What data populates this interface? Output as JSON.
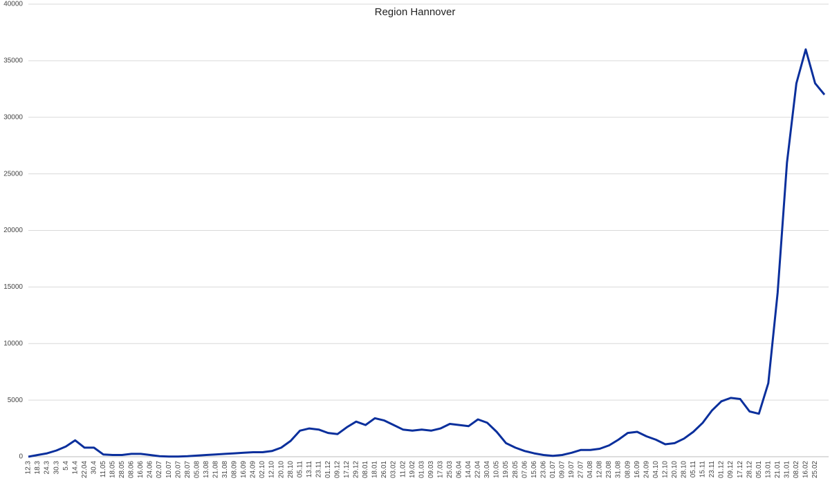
{
  "chart_data": {
    "type": "line",
    "title": "Region Hannover",
    "categories": [
      "12.3",
      "18.3",
      "24.3",
      "30.3",
      "5.4",
      "14.4",
      "22.04",
      "30.4",
      "11.05",
      "18.05",
      "28.05",
      "08.06",
      "16.06",
      "24.06",
      "02.07",
      "10.07",
      "20.07",
      "28.07",
      "05.08",
      "13.08",
      "21.08",
      "31.08",
      "08.09",
      "16.09",
      "24.09",
      "02.10",
      "12.10",
      "20.10",
      "28.10",
      "05.11",
      "13.11",
      "23.11",
      "01.12",
      "09.12",
      "17.12",
      "29.12",
      "08.01",
      "18.01",
      "26.01",
      "03.02",
      "11.02",
      "19.02",
      "01.03",
      "09.03",
      "17.03",
      "25.03",
      "06.04",
      "14.04",
      "22.04",
      "30.04",
      "10.05",
      "19.05",
      "28.05",
      "07.06",
      "15.06",
      "23.06",
      "01.07",
      "09.07",
      "19.07",
      "27.07",
      "04.08",
      "12.08",
      "23.08",
      "31.08",
      "08.09",
      "16.09",
      "24.09",
      "04.10",
      "12.10",
      "20.10",
      "28.10",
      "05.11",
      "15.11",
      "23.11",
      "01.12",
      "09.12",
      "17.12",
      "28.12",
      "05.01",
      "13.01",
      "21.01",
      "31.01",
      "08.02",
      "16.02",
      "25.02",
      null
    ],
    "series": [
      {
        "color": "#0a2f9c",
        "values": [
          0,
          150,
          300,
          550,
          900,
          1450,
          800,
          800,
          200,
          150,
          150,
          250,
          250,
          150,
          50,
          20,
          20,
          50,
          100,
          150,
          200,
          250,
          300,
          350,
          400,
          400,
          500,
          800,
          1400,
          2300,
          2500,
          2400,
          2100,
          2000,
          2600,
          3100,
          2800,
          3400,
          3200,
          2800,
          2400,
          2300,
          2400,
          2300,
          2500,
          2900,
          2800,
          2700,
          3300,
          3000,
          2200,
          1200,
          800,
          500,
          300,
          150,
          80,
          150,
          350,
          600,
          600,
          700,
          1000,
          1500,
          2100,
          2200,
          1800,
          1500,
          1100,
          1200,
          1600,
          2200,
          3000,
          4100,
          4900,
          5200,
          5100,
          4000,
          3800,
          6500,
          14500,
          26000,
          33000,
          36000,
          33000,
          32000
        ]
      }
    ],
    "ylim": [
      0,
      40000
    ],
    "yticks": [
      0,
      5000,
      10000,
      15000,
      20000,
      25000,
      30000,
      35000,
      40000
    ],
    "grid": true
  }
}
